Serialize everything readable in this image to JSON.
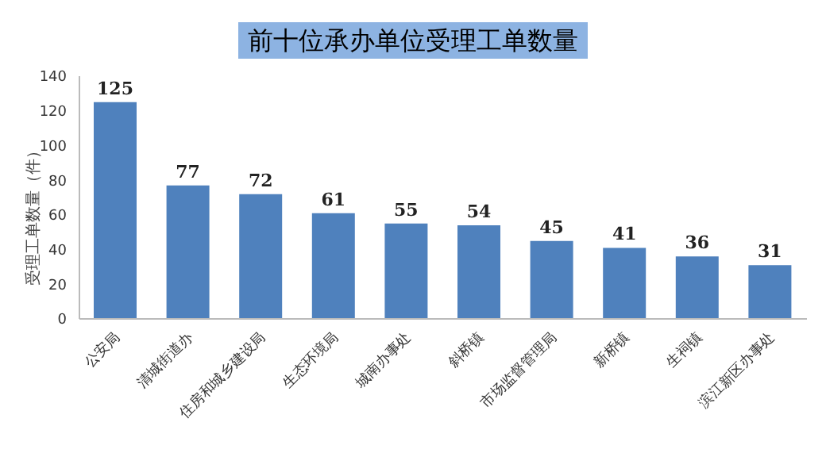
{
  "chart_data": {
    "type": "bar",
    "title": "前十位承办单位受理工单数量",
    "ylabel": "受理工单数量（件）",
    "categories": [
      "公安局",
      "清城街道办",
      "住房和城乡建设局",
      "生态环境局",
      "城南办事处",
      "斜桥镇",
      "市场监督管理局",
      "新桥镇",
      "生祠镇",
      "滨江新区办事处"
    ],
    "values": [
      125,
      77,
      72,
      61,
      55,
      54,
      45,
      41,
      36,
      31
    ],
    "color": "#4f81bd",
    "ylim": [
      0,
      140
    ],
    "yticks": [
      0,
      20,
      40,
      60,
      80,
      100,
      120,
      140
    ],
    "grid": false,
    "data_labels": true
  }
}
